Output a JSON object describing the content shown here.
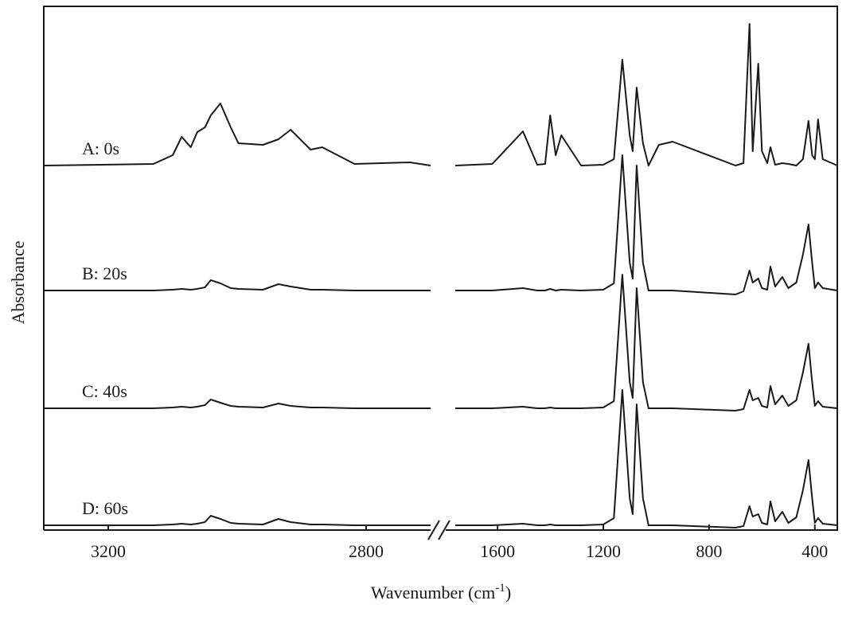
{
  "chart_data": {
    "type": "line",
    "y_label": "Absorbance",
    "x_label": {
      "text": "Wavenumber (cm",
      "superscript": "-1",
      "suffix": ")"
    },
    "xlim": [
      3300,
      315
    ],
    "x_break": [
      2700,
      1760
    ],
    "xticks": [
      3200,
      2800,
      1600,
      1200,
      800,
      400
    ],
    "ylim": [
      0,
      658
    ],
    "x": [
      3300,
      3130,
      3100,
      3086,
      3072,
      3062,
      3050,
      3041,
      3026,
      3010,
      2998,
      2960,
      2936,
      2917,
      2886,
      2868,
      2818,
      2732,
      2700,
      1760,
      1620,
      1504,
      1450,
      1420,
      1401,
      1380,
      1359,
      1284,
      1200,
      1160,
      1128,
      1100,
      1089,
      1074,
      1050,
      1029,
      990,
      938,
      700,
      670,
      647,
      635,
      614,
      600,
      580,
      568,
      550,
      523,
      500,
      470,
      445,
      424,
      410,
      400,
      388,
      370,
      315
    ],
    "series": [
      {
        "name": "A: 0s",
        "color": "#1a1a1a",
        "values": [
          458,
          460,
          471,
          494,
          481,
          500,
          506,
          521,
          536,
          506,
          486,
          484,
          491,
          503,
          478,
          481,
          460,
          462,
          458,
          458,
          460,
          501,
          459,
          460,
          521,
          471,
          496,
          458,
          459,
          466,
          591,
          496,
          476,
          556,
          486,
          458,
          484,
          488,
          458,
          461,
          636,
          476,
          586,
          476,
          461,
          481,
          459,
          461,
          460,
          458,
          466,
          514,
          471,
          466,
          516,
          466,
          458
        ]
      },
      {
        "name": "B: 20s",
        "color": "#1a1a1a",
        "values": [
          301,
          301,
          302,
          303,
          302,
          303,
          305,
          314,
          310,
          304,
          303,
          302,
          309,
          306,
          302,
          302,
          301,
          301,
          301,
          301,
          301,
          304,
          301,
          301,
          303,
          301,
          302,
          301,
          302,
          310,
          471,
          336,
          316,
          458,
          336,
          301,
          301,
          301,
          296,
          300,
          326,
          311,
          316,
          304,
          302,
          331,
          306,
          318,
          304,
          311,
          346,
          384,
          336,
          304,
          311,
          304,
          301
        ]
      },
      {
        "name": "C: 40s",
        "color": "#1a1a1a",
        "values": [
          153,
          153,
          154,
          155,
          154,
          155,
          157,
          164,
          160,
          156,
          155,
          154,
          159,
          156,
          154,
          154,
          153,
          153,
          153,
          153,
          153,
          155,
          153,
          153,
          154,
          153,
          153,
          153,
          154,
          162,
          321,
          186,
          166,
          304,
          186,
          153,
          153,
          153,
          150,
          152,
          176,
          163,
          166,
          156,
          154,
          181,
          158,
          169,
          156,
          163,
          198,
          234,
          186,
          156,
          162,
          155,
          153
        ]
      },
      {
        "name": "D: 60s",
        "color": "#1a1a1a",
        "values": [
          6,
          6,
          7,
          8,
          7,
          8,
          10,
          18,
          14,
          9,
          8,
          7,
          14,
          10,
          7,
          7,
          6,
          6,
          6,
          6,
          6,
          8,
          6,
          6,
          7,
          6,
          6,
          6,
          7,
          15,
          176,
          40,
          20,
          158,
          40,
          6,
          6,
          6,
          3,
          5,
          30,
          17,
          20,
          9,
          7,
          36,
          11,
          23,
          9,
          16,
          50,
          88,
          40,
          9,
          15,
          8,
          6
        ]
      }
    ]
  }
}
